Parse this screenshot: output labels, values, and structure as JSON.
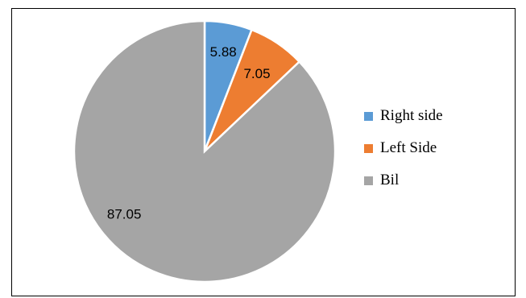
{
  "chart_data": {
    "type": "pie",
    "title": "",
    "slices": [
      {
        "name": "Right side",
        "value": 5.88,
        "color": "#5B9BD5"
      },
      {
        "name": "Left Side",
        "value": 7.05,
        "color": "#ED7D31"
      },
      {
        "name": "Bil",
        "value": 87.05,
        "color": "#A5A5A5"
      }
    ],
    "legend_position": "right",
    "data_labels": [
      "5.88",
      "7.05",
      "87.05"
    ]
  }
}
